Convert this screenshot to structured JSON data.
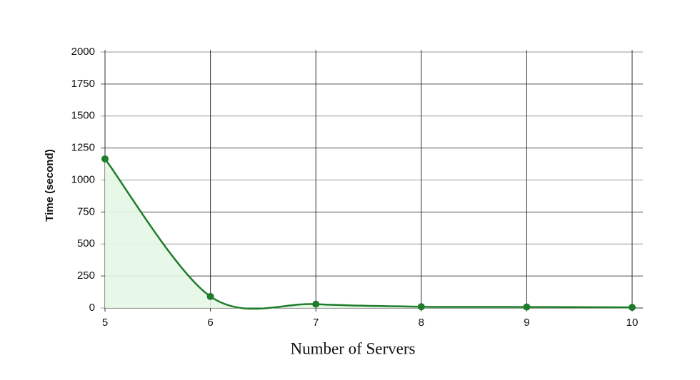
{
  "chart_data": {
    "type": "line",
    "x_label": "Number of Servers",
    "y_label": "Time (second)",
    "x": [
      5,
      6,
      7,
      8,
      9,
      10
    ],
    "series": [
      {
        "name": "Time",
        "color": "#1e7d2a",
        "values": [
          1165,
          90,
          30,
          10,
          8,
          5
        ]
      }
    ],
    "xlim": [
      5,
      10
    ],
    "xticks": [
      5,
      6,
      7,
      8,
      9,
      10
    ],
    "ylim": [
      0,
      2000
    ],
    "yticks": [
      0,
      250,
      500,
      750,
      1000,
      1250,
      1500,
      1750,
      2000
    ],
    "grid": true,
    "area": true
  }
}
